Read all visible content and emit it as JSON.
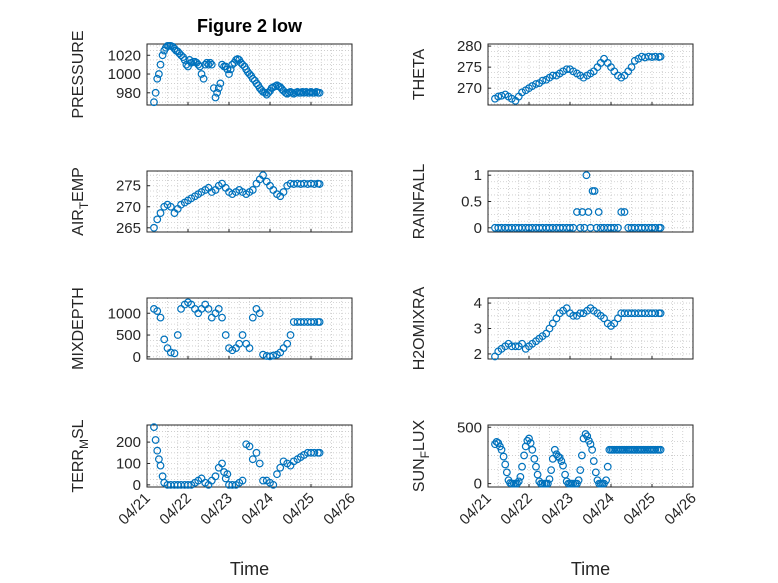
{
  "figure": {
    "title": "Figure 2 low",
    "marker_color": "#0072BD",
    "grid": "dotted",
    "date_ticks": [
      "04/21",
      "04/22",
      "04/23",
      "04/24",
      "04/25",
      "04/26"
    ]
  },
  "chart_data": [
    {
      "type": "scatter",
      "name": "pressure",
      "ylabel": "PRESSURE",
      "xlabel": "",
      "title": "Figure 2 low",
      "yticks": [
        980,
        1000,
        1020
      ],
      "ylim": [
        967,
        1032
      ],
      "x_range": [
        "04/21",
        "04/26"
      ],
      "x": [
        0.17,
        0.21,
        0.25,
        0.29,
        0.33,
        0.38,
        0.42,
        0.46,
        0.5,
        0.54,
        0.58,
        0.63,
        0.67,
        0.71,
        0.75,
        0.79,
        0.83,
        0.88,
        0.92,
        0.96,
        1.0,
        1.04,
        1.08,
        1.13,
        1.17,
        1.21,
        1.25,
        1.29,
        1.33,
        1.38,
        1.42,
        1.46,
        1.5,
        1.54,
        1.58,
        1.63,
        1.67,
        1.71,
        1.75,
        1.79,
        1.83,
        1.88,
        1.92,
        1.96,
        2.0,
        2.04,
        2.08,
        2.13,
        2.17,
        2.21,
        2.25,
        2.29,
        2.33,
        2.38,
        2.42,
        2.46,
        2.5,
        2.54,
        2.58,
        2.63,
        2.67,
        2.71,
        2.75,
        2.79,
        2.83,
        2.88,
        2.92,
        2.96,
        3.0,
        3.04,
        3.08,
        3.13,
        3.17,
        3.21,
        3.25,
        3.29,
        3.33,
        3.38,
        3.42,
        3.46,
        3.5,
        3.54,
        3.58,
        3.63,
        3.67,
        3.71,
        3.75,
        3.79,
        3.83,
        3.88,
        3.92,
        3.96,
        4.0,
        4.04,
        4.08,
        4.13,
        4.17,
        4.21
      ],
      "y": [
        970,
        980,
        995,
        1000,
        1010,
        1020,
        1025,
        1028,
        1030,
        1030,
        1030,
        1029,
        1027,
        1025,
        1024,
        1022,
        1020,
        1018,
        1015,
        1010,
        1008,
        1015,
        1012,
        1013,
        1013,
        1012,
        1010,
        1008,
        1000,
        995,
        1010,
        1012,
        1010,
        1012,
        1010,
        985,
        975,
        980,
        985,
        990,
        1010,
        1008,
        1008,
        1005,
        1000,
        1005,
        1010,
        1012,
        1015,
        1016,
        1015,
        1012,
        1010,
        1008,
        1005,
        1002,
        1000,
        998,
        995,
        993,
        990,
        988,
        985,
        983,
        981,
        980,
        978,
        980,
        982,
        985,
        986,
        987,
        988,
        987,
        986,
        984,
        982,
        980,
        979,
        980,
        981,
        980,
        979,
        980,
        981,
        980,
        980,
        981,
        980,
        981,
        980,
        980,
        981,
        980,
        980,
        981,
        980,
        980
      ]
    },
    {
      "type": "scatter",
      "name": "theta",
      "ylabel": "THETA",
      "xlabel": "",
      "yticks": [
        270,
        275,
        280
      ],
      "ylim": [
        266,
        280.5
      ],
      "x_range": [
        "04/21",
        "04/26"
      ],
      "x": [
        0.17,
        0.25,
        0.33,
        0.42,
        0.5,
        0.58,
        0.67,
        0.75,
        0.83,
        0.92,
        1.0,
        1.08,
        1.17,
        1.25,
        1.33,
        1.42,
        1.5,
        1.58,
        1.67,
        1.75,
        1.83,
        1.92,
        2.0,
        2.08,
        2.17,
        2.25,
        2.33,
        2.42,
        2.5,
        2.58,
        2.67,
        2.75,
        2.83,
        2.92,
        3.0,
        3.08,
        3.17,
        3.25,
        3.33,
        3.42,
        3.5,
        3.58,
        3.67,
        3.75,
        3.83,
        3.92,
        4.0,
        4.08,
        4.17,
        4.21
      ],
      "y": [
        267.5,
        268,
        268.2,
        268.5,
        268,
        267.5,
        267,
        268,
        269,
        269.5,
        270,
        270.5,
        271,
        271.2,
        271.8,
        272,
        272.5,
        273,
        273,
        273.5,
        274,
        274.5,
        274.5,
        274,
        273.5,
        273,
        272.5,
        273,
        273.5,
        274,
        275,
        276,
        277,
        276,
        275,
        274,
        273,
        272.5,
        273,
        274,
        275,
        276.5,
        277,
        277.5,
        277.3,
        277.5,
        277.4,
        277.5,
        277.4,
        277.5
      ]
    },
    {
      "type": "scatter",
      "name": "air_temp",
      "ylabel": "AIR_TEMP",
      "xlabel": "",
      "yticks": [
        265,
        270,
        275
      ],
      "ylim": [
        264,
        278.5
      ],
      "x_range": [
        "04/21",
        "04/26"
      ],
      "x": [
        0.17,
        0.25,
        0.33,
        0.42,
        0.5,
        0.58,
        0.67,
        0.75,
        0.83,
        0.92,
        1.0,
        1.08,
        1.17,
        1.25,
        1.33,
        1.42,
        1.5,
        1.58,
        1.67,
        1.75,
        1.83,
        1.92,
        2.0,
        2.08,
        2.17,
        2.25,
        2.33,
        2.42,
        2.5,
        2.58,
        2.67,
        2.75,
        2.83,
        2.92,
        3.0,
        3.08,
        3.17,
        3.25,
        3.33,
        3.42,
        3.5,
        3.58,
        3.67,
        3.75,
        3.83,
        3.92,
        4.0,
        4.08,
        4.17,
        4.21
      ],
      "y": [
        265,
        267,
        268.5,
        270,
        270.5,
        270,
        268.5,
        269.5,
        270.5,
        271,
        271.5,
        272,
        272.5,
        273,
        273.5,
        274,
        274.5,
        273.5,
        274,
        275,
        275.5,
        274.5,
        273.5,
        273,
        273.5,
        274,
        273.5,
        273,
        273.5,
        274,
        275.5,
        276.5,
        277.5,
        276,
        275,
        274,
        273,
        272.5,
        273.5,
        275,
        275.5,
        275.4,
        275.5,
        275.4,
        275.5,
        275.4,
        275.5,
        275.4,
        275.5,
        275.4
      ]
    },
    {
      "type": "scatter",
      "name": "rainfall",
      "ylabel": "RAINFALL",
      "xlabel": "",
      "yticks": [
        0,
        0.5,
        1
      ],
      "ylim": [
        -0.08,
        1.08
      ],
      "x_range": [
        "04/21",
        "04/26"
      ],
      "x": [
        0.17,
        0.25,
        0.33,
        0.42,
        0.5,
        0.58,
        0.67,
        0.75,
        0.83,
        0.92,
        1.0,
        1.08,
        1.17,
        1.25,
        1.33,
        1.42,
        1.5,
        1.58,
        1.67,
        1.75,
        1.83,
        1.92,
        2.0,
        2.08,
        2.17,
        2.25,
        2.3,
        2.35,
        2.4,
        2.45,
        2.5,
        2.55,
        2.6,
        2.65,
        2.7,
        2.75,
        2.83,
        2.92,
        3.0,
        3.08,
        3.17,
        3.25,
        3.33,
        3.42,
        3.5,
        3.58,
        3.67,
        3.75,
        3.83,
        3.92,
        4.0,
        4.08,
        4.17,
        4.21
      ],
      "y": [
        0,
        0,
        0,
        0,
        0,
        0,
        0,
        0,
        0,
        0,
        0,
        0,
        0,
        0,
        0,
        0,
        0,
        0,
        0,
        0,
        0,
        0,
        0,
        0,
        0.3,
        0,
        0.3,
        0,
        1,
        0.3,
        0,
        0.7,
        0.7,
        0,
        0.3,
        0,
        0,
        0,
        0,
        0,
        0,
        0.3,
        0.3,
        0,
        0,
        0,
        0,
        0,
        0,
        0,
        0,
        0,
        0,
        0
      ]
    },
    {
      "type": "scatter",
      "name": "mixdepth",
      "ylabel": "MIXDEPTH",
      "xlabel": "",
      "yticks": [
        0,
        500,
        1000
      ],
      "ylim": [
        -50,
        1350
      ],
      "x_range": [
        "04/21",
        "04/26"
      ],
      "x": [
        0.17,
        0.25,
        0.33,
        0.42,
        0.5,
        0.58,
        0.67,
        0.75,
        0.83,
        0.92,
        1.0,
        1.08,
        1.17,
        1.25,
        1.33,
        1.42,
        1.5,
        1.58,
        1.67,
        1.75,
        1.83,
        1.92,
        2.0,
        2.08,
        2.17,
        2.25,
        2.33,
        2.42,
        2.5,
        2.58,
        2.67,
        2.75,
        2.83,
        2.92,
        3.0,
        3.08,
        3.17,
        3.25,
        3.33,
        3.42,
        3.5,
        3.58,
        3.67,
        3.75,
        3.83,
        3.92,
        4.0,
        4.08,
        4.17,
        4.21
      ],
      "y": [
        1100,
        1050,
        900,
        400,
        200,
        100,
        80,
        500,
        1100,
        1200,
        1250,
        1200,
        1100,
        1000,
        1100,
        1200,
        1100,
        900,
        1000,
        1100,
        900,
        500,
        200,
        150,
        200,
        300,
        500,
        300,
        200,
        900,
        1100,
        1000,
        50,
        20,
        10,
        30,
        50,
        100,
        200,
        300,
        500,
        800,
        800,
        800,
        800,
        800,
        800,
        800,
        800,
        800
      ]
    },
    {
      "type": "scatter",
      "name": "h2omixra",
      "ylabel": "H2OMIXRA",
      "xlabel": "",
      "yticks": [
        2,
        3,
        4
      ],
      "ylim": [
        1.8,
        4.2
      ],
      "x_range": [
        "04/21",
        "04/26"
      ],
      "x": [
        0.17,
        0.25,
        0.33,
        0.42,
        0.5,
        0.58,
        0.67,
        0.75,
        0.83,
        0.92,
        1.0,
        1.08,
        1.17,
        1.25,
        1.33,
        1.42,
        1.5,
        1.58,
        1.67,
        1.75,
        1.83,
        1.92,
        2.0,
        2.08,
        2.17,
        2.25,
        2.33,
        2.42,
        2.5,
        2.58,
        2.67,
        2.75,
        2.83,
        2.92,
        3.0,
        3.08,
        3.17,
        3.25,
        3.33,
        3.42,
        3.5,
        3.58,
        3.67,
        3.75,
        3.83,
        3.92,
        4.0,
        4.08,
        4.17,
        4.21
      ],
      "y": [
        1.9,
        2.1,
        2.2,
        2.3,
        2.4,
        2.3,
        2.3,
        2.3,
        2.4,
        2.2,
        2.3,
        2.4,
        2.5,
        2.6,
        2.7,
        2.8,
        3.0,
        3.2,
        3.4,
        3.6,
        3.7,
        3.8,
        3.6,
        3.5,
        3.5,
        3.6,
        3.6,
        3.7,
        3.8,
        3.7,
        3.6,
        3.5,
        3.4,
        3.2,
        3.1,
        3.2,
        3.4,
        3.6,
        3.6,
        3.6,
        3.6,
        3.6,
        3.6,
        3.6,
        3.6,
        3.6,
        3.6,
        3.6,
        3.6,
        3.6
      ]
    },
    {
      "type": "scatter",
      "name": "terr_msl",
      "ylabel": "TERR_MSL",
      "xlabel": "Time",
      "yticks": [
        0,
        100,
        200
      ],
      "ylim": [
        -10,
        280
      ],
      "x_range": [
        "04/21",
        "04/26"
      ],
      "x": [
        0.17,
        0.21,
        0.25,
        0.29,
        0.33,
        0.38,
        0.42,
        0.5,
        0.58,
        0.67,
        0.75,
        0.83,
        0.92,
        1.0,
        1.08,
        1.17,
        1.25,
        1.33,
        1.42,
        1.5,
        1.58,
        1.67,
        1.75,
        1.83,
        1.88,
        1.92,
        1.96,
        2.0,
        2.08,
        2.17,
        2.25,
        2.33,
        2.42,
        2.5,
        2.58,
        2.67,
        2.75,
        2.83,
        2.92,
        3.0,
        3.08,
        3.17,
        3.25,
        3.33,
        3.42,
        3.5,
        3.58,
        3.67,
        3.75,
        3.83,
        3.92,
        4.0,
        4.08,
        4.17,
        4.21
      ],
      "y": [
        270,
        210,
        160,
        120,
        90,
        40,
        10,
        0,
        0,
        0,
        0,
        0,
        0,
        0,
        0,
        10,
        20,
        30,
        10,
        0,
        20,
        40,
        80,
        100,
        60,
        30,
        50,
        0,
        0,
        0,
        10,
        20,
        190,
        180,
        120,
        150,
        100,
        20,
        20,
        10,
        0,
        50,
        80,
        110,
        100,
        90,
        110,
        120,
        130,
        140,
        150,
        150,
        150,
        150,
        150
      ]
    },
    {
      "type": "scatter",
      "name": "sun_flux",
      "ylabel": "SUN_FLUX",
      "xlabel": "Time",
      "yticks": [
        0,
        500
      ],
      "ylim": [
        -30,
        520
      ],
      "x_range": [
        "04/21",
        "04/26"
      ],
      "x": [
        0.17,
        0.21,
        0.25,
        0.29,
        0.33,
        0.38,
        0.42,
        0.46,
        0.5,
        0.54,
        0.58,
        0.63,
        0.67,
        0.71,
        0.75,
        0.79,
        0.83,
        0.88,
        0.92,
        0.96,
        1.0,
        1.04,
        1.08,
        1.13,
        1.17,
        1.21,
        1.25,
        1.29,
        1.33,
        1.38,
        1.42,
        1.46,
        1.5,
        1.54,
        1.58,
        1.63,
        1.67,
        1.71,
        1.75,
        1.79,
        1.83,
        1.88,
        1.92,
        1.96,
        2.0,
        2.04,
        2.08,
        2.13,
        2.17,
        2.21,
        2.25,
        2.29,
        2.33,
        2.38,
        2.42,
        2.46,
        2.5,
        2.54,
        2.58,
        2.63,
        2.67,
        2.71,
        2.75,
        2.79,
        2.83,
        2.88,
        2.92,
        2.96,
        3.0,
        3.04,
        3.08,
        3.13,
        3.17,
        3.21,
        3.25,
        3.29,
        3.33,
        3.38,
        3.42,
        3.46,
        3.5,
        3.54,
        3.58,
        3.63,
        3.67,
        3.71,
        3.75,
        3.79,
        3.83,
        3.88,
        3.92,
        3.96,
        4.0,
        4.04,
        4.08,
        4.13,
        4.17,
        4.21
      ],
      "y": [
        350,
        370,
        360,
        330,
        300,
        240,
        170,
        100,
        30,
        5,
        0,
        0,
        0,
        0,
        20,
        60,
        150,
        250,
        330,
        380,
        400,
        360,
        300,
        220,
        150,
        80,
        20,
        0,
        0,
        0,
        0,
        0,
        40,
        120,
        220,
        300,
        260,
        240,
        230,
        200,
        160,
        80,
        20,
        0,
        0,
        0,
        0,
        0,
        0,
        30,
        120,
        250,
        400,
        440,
        420,
        380,
        350,
        300,
        200,
        100,
        30,
        0,
        0,
        0,
        0,
        30,
        150,
        300,
        300,
        300,
        300,
        300,
        300,
        300,
        300,
        300,
        300,
        300,
        300,
        300,
        300,
        300,
        300,
        300,
        300,
        300,
        300,
        300,
        300,
        300,
        300,
        300,
        300,
        300,
        300,
        300,
        300,
        300
      ]
    }
  ]
}
